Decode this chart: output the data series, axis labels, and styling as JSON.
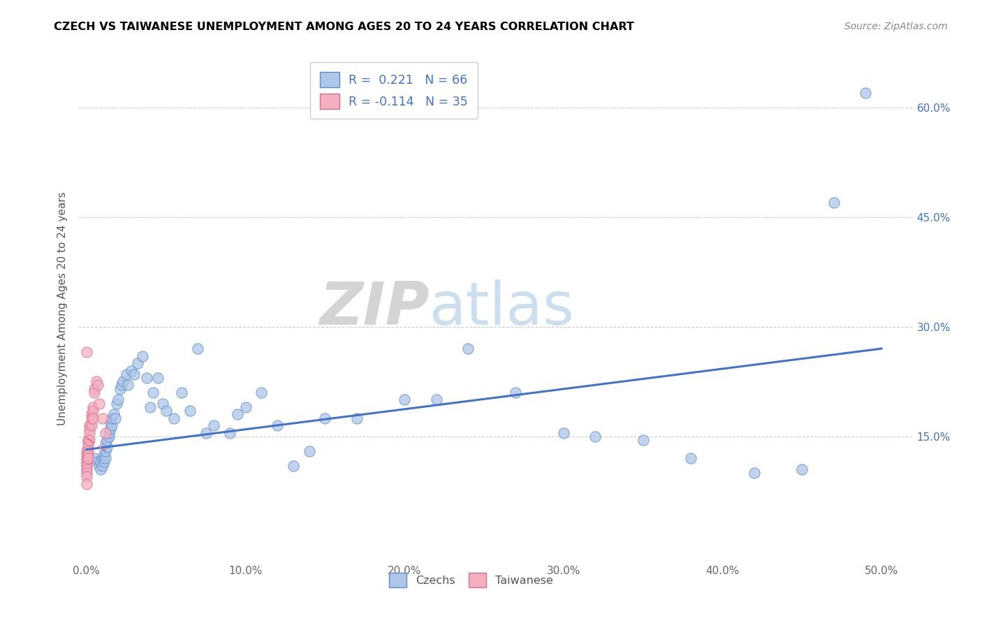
{
  "title": "CZECH VS TAIWANESE UNEMPLOYMENT AMONG AGES 20 TO 24 YEARS CORRELATION CHART",
  "source": "Source: ZipAtlas.com",
  "xlabel_ticks": [
    "0.0%",
    "10.0%",
    "20.0%",
    "30.0%",
    "40.0%",
    "50.0%"
  ],
  "ylabel_ticks": [
    "15.0%",
    "30.0%",
    "45.0%",
    "60.0%"
  ],
  "ylabel_label": "Unemployment Among Ages 20 to 24 years",
  "xlim": [
    -0.005,
    0.52
  ],
  "ylim": [
    -0.02,
    0.67
  ],
  "legend_r_czech": "R =  0.221",
  "legend_n_czech": "N = 66",
  "legend_r_taiwan": "R = -0.114",
  "legend_n_taiwan": "N = 35",
  "czech_color": "#aec6e8",
  "taiwan_color": "#f4afc0",
  "czech_edge_color": "#5b8ec9",
  "taiwan_edge_color": "#d07090",
  "czech_line_color": "#4472c4",
  "taiwan_line_color": "#e07090",
  "watermark_zip": "ZIP",
  "watermark_atlas": "atlas",
  "czech_x": [
    0.005,
    0.007,
    0.008,
    0.009,
    0.009,
    0.01,
    0.01,
    0.011,
    0.011,
    0.012,
    0.012,
    0.012,
    0.013,
    0.013,
    0.014,
    0.014,
    0.015,
    0.015,
    0.016,
    0.016,
    0.017,
    0.018,
    0.019,
    0.02,
    0.021,
    0.022,
    0.023,
    0.025,
    0.026,
    0.028,
    0.03,
    0.032,
    0.035,
    0.038,
    0.04,
    0.042,
    0.045,
    0.048,
    0.05,
    0.055,
    0.06,
    0.065,
    0.07,
    0.075,
    0.08,
    0.09,
    0.095,
    0.1,
    0.11,
    0.12,
    0.13,
    0.14,
    0.15,
    0.17,
    0.2,
    0.22,
    0.24,
    0.27,
    0.3,
    0.32,
    0.35,
    0.38,
    0.42,
    0.45,
    0.47,
    0.49
  ],
  "czech_y": [
    0.12,
    0.115,
    0.11,
    0.105,
    0.115,
    0.11,
    0.12,
    0.115,
    0.125,
    0.12,
    0.13,
    0.14,
    0.135,
    0.145,
    0.15,
    0.155,
    0.16,
    0.17,
    0.165,
    0.175,
    0.18,
    0.175,
    0.195,
    0.2,
    0.215,
    0.22,
    0.225,
    0.235,
    0.22,
    0.24,
    0.235,
    0.25,
    0.26,
    0.23,
    0.19,
    0.21,
    0.23,
    0.195,
    0.185,
    0.175,
    0.21,
    0.185,
    0.27,
    0.155,
    0.165,
    0.155,
    0.18,
    0.19,
    0.21,
    0.165,
    0.11,
    0.13,
    0.175,
    0.175,
    0.2,
    0.2,
    0.27,
    0.21,
    0.155,
    0.15,
    0.145,
    0.12,
    0.1,
    0.105,
    0.47,
    0.62
  ],
  "taiwan_x": [
    0.0,
    0.0,
    0.0,
    0.0,
    0.0,
    0.0,
    0.0,
    0.0,
    0.0,
    0.0,
    0.0,
    0.0,
    0.001,
    0.001,
    0.001,
    0.001,
    0.001,
    0.001,
    0.002,
    0.002,
    0.002,
    0.002,
    0.003,
    0.003,
    0.003,
    0.004,
    0.004,
    0.004,
    0.005,
    0.005,
    0.006,
    0.007,
    0.008,
    0.01,
    0.012
  ],
  "taiwan_y": [
    0.265,
    0.13,
    0.125,
    0.12,
    0.115,
    0.115,
    0.11,
    0.11,
    0.105,
    0.1,
    0.095,
    0.085,
    0.145,
    0.14,
    0.135,
    0.13,
    0.125,
    0.12,
    0.165,
    0.16,
    0.155,
    0.145,
    0.18,
    0.175,
    0.165,
    0.19,
    0.185,
    0.175,
    0.215,
    0.21,
    0.225,
    0.22,
    0.195,
    0.175,
    0.155
  ],
  "czech_line_start_x": 0.0,
  "czech_line_start_y": 0.132,
  "czech_line_end_x": 0.5,
  "czech_line_end_y": 0.27,
  "taiwan_line_start_x": 0.0,
  "taiwan_line_start_y": 0.148,
  "taiwan_line_end_x": 0.012,
  "taiwan_line_end_y": 0.13
}
